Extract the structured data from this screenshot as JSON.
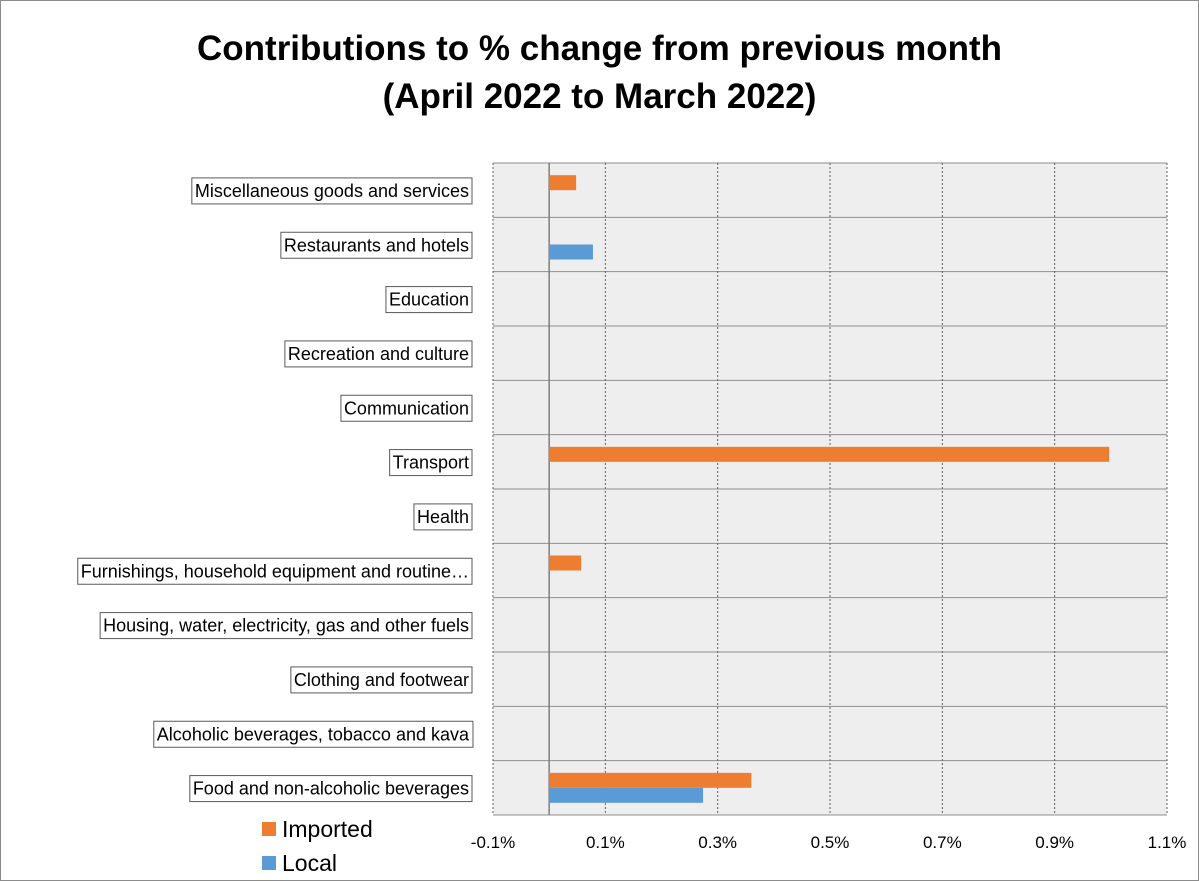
{
  "chart_data": {
    "type": "bar",
    "orientation": "horizontal",
    "title_lines": [
      "Contributions to % change from previous month",
      "(April 2022 to March 2022)"
    ],
    "categories": [
      "Miscellaneous goods and services",
      "Restaurants and hotels",
      "Education",
      "Recreation and culture",
      "Communication",
      "Transport",
      "Health",
      "Furnishings, household equipment and routine…",
      "Housing, water, electricity, gas and other fuels",
      "Clothing and footwear",
      "Alcoholic beverages, tobacco and kava",
      "Food and non-alcoholic beverages"
    ],
    "series": [
      {
        "name": "Imported",
        "color": "#ED7D31",
        "values": [
          0.048,
          0,
          0,
          0,
          0,
          0.997,
          0,
          0.057,
          0,
          0,
          0,
          0.36
        ]
      },
      {
        "name": "Local",
        "color": "#5B9BD5",
        "values": [
          0,
          0.078,
          0,
          0,
          0,
          0,
          0,
          0,
          0,
          0,
          0,
          0.274
        ]
      }
    ],
    "x_ticks": [
      "-0.1%",
      "0.1%",
      "0.3%",
      "0.5%",
      "0.7%",
      "0.9%",
      "1.1%"
    ],
    "xlim": [
      -0.1,
      1.1
    ],
    "x_tick_step": 0.2,
    "grid": true,
    "legend_position": "bottom-left"
  }
}
